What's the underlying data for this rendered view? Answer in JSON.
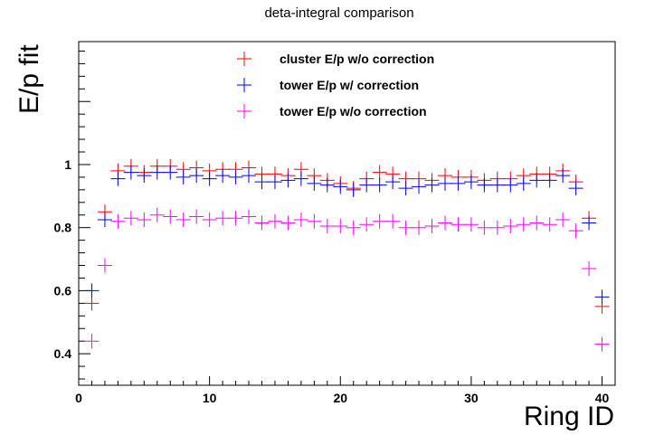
{
  "chart_data": {
    "type": "scatter",
    "title": "deta-integral comparison",
    "xlabel": "Ring ID",
    "ylabel": "E/p fit",
    "xlim": [
      0,
      41
    ],
    "ylim": [
      0.3,
      1.39
    ],
    "x_ticks": [
      0,
      10,
      20,
      30,
      40
    ],
    "y_ticks": [
      0.4,
      0.6,
      0.8,
      1.0
    ],
    "x_tick_labels": [
      "0",
      "10",
      "20",
      "30",
      "40"
    ],
    "y_tick_labels": [
      "0.4",
      "0.6",
      "0.8",
      "1"
    ],
    "grid": false,
    "legend_position": "top-center",
    "x": [
      1,
      2,
      3,
      4,
      5,
      6,
      7,
      8,
      9,
      10,
      11,
      12,
      13,
      14,
      15,
      16,
      17,
      18,
      19,
      20,
      21,
      22,
      23,
      24,
      25,
      26,
      27,
      28,
      29,
      30,
      31,
      32,
      33,
      34,
      35,
      36,
      37,
      38,
      39,
      40
    ],
    "series": [
      {
        "name": "cluster E/p w/o correction",
        "color": "#ff0000",
        "values": [
          0.56,
          0.85,
          0.98,
          0.995,
          0.975,
          0.995,
          0.995,
          0.985,
          0.99,
          0.98,
          0.985,
          0.985,
          0.99,
          0.97,
          0.97,
          0.965,
          0.985,
          0.965,
          0.95,
          0.94,
          0.925,
          0.955,
          0.975,
          0.97,
          0.955,
          0.955,
          0.95,
          0.965,
          0.96,
          0.96,
          0.95,
          0.955,
          0.955,
          0.965,
          0.97,
          0.97,
          0.98,
          0.945,
          0.83,
          0.55
        ]
      },
      {
        "name": "tower E/p w/ correction",
        "color": "#0000ff",
        "values": [
          0.6,
          0.825,
          0.955,
          0.975,
          0.965,
          0.975,
          0.975,
          0.96,
          0.965,
          0.955,
          0.965,
          0.96,
          0.965,
          0.945,
          0.945,
          0.95,
          0.955,
          0.94,
          0.935,
          0.93,
          0.92,
          0.935,
          0.935,
          0.945,
          0.925,
          0.93,
          0.935,
          0.94,
          0.94,
          0.945,
          0.935,
          0.935,
          0.935,
          0.94,
          0.95,
          0.95,
          0.965,
          0.925,
          0.815,
          0.58
        ]
      },
      {
        "name": "tower E/p w/o correction",
        "color": "#ff00ff",
        "values": [
          0.44,
          0.68,
          0.82,
          0.83,
          0.825,
          0.84,
          0.835,
          0.825,
          0.835,
          0.825,
          0.83,
          0.83,
          0.835,
          0.815,
          0.82,
          0.815,
          0.825,
          0.82,
          0.805,
          0.805,
          0.8,
          0.81,
          0.82,
          0.82,
          0.8,
          0.8,
          0.805,
          0.815,
          0.81,
          0.81,
          0.8,
          0.8,
          0.805,
          0.81,
          0.815,
          0.81,
          0.825,
          0.79,
          0.67,
          0.43
        ]
      }
    ]
  }
}
